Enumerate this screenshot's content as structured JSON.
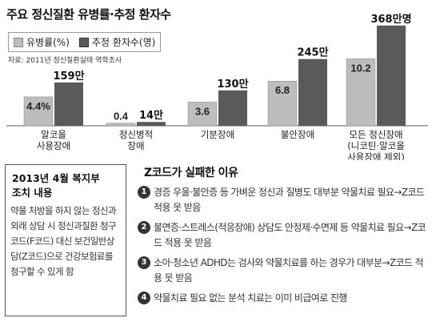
{
  "title": "주요 정신질환 유병률·추정 환자수",
  "legend": {
    "rate": "유병률(%)",
    "patients": "추정 환자수(명)"
  },
  "source": "자료: 2011년 정신질환실태 역학조사",
  "chart_data": {
    "type": "bar",
    "categories": [
      "알코올\n사용장애",
      "정신병적\n장애",
      "기분장애",
      "불안장애",
      "모든 정신장애\n(니코틴·알코올\n사용장애 제외)"
    ],
    "series": [
      {
        "name": "유병률(%)",
        "values": [
          4.4,
          0.4,
          3.6,
          6.8,
          10.2
        ],
        "labels": [
          "4.4%",
          "0.4",
          "3.6",
          "6.8",
          "10.2"
        ]
      },
      {
        "name": "추정 환자수(명)",
        "values": [
          159,
          14,
          130,
          245,
          368
        ],
        "labels": [
          "159만",
          "14만",
          "130만",
          "245만",
          "368만명"
        ]
      }
    ],
    "colors": {
      "rate": "#bdbdbd",
      "patients": "#5a5a5a"
    }
  },
  "box": {
    "title": "2013년 4월 복지부 조치 내용",
    "body": "약물 처방을 하지 않는 정신과 외래 상담 시 정신과질환 청구 코드(F코드) 대신 보건일반상담(Z코드)으로 건강보험료를 청구할 수 있게 함"
  },
  "reasons": {
    "title": "Z코드가 실패한 이유",
    "items": [
      {
        "num": "1",
        "text": "경증 우울·불안증 등 가벼운 정신과 질병도 대부분 약물치료 필요→Z코드 적용 못 받음"
      },
      {
        "num": "2",
        "text": "불면증·스트레스(적응장애) 상담도 안정제·수면제 등 약물치료 필요→Z코드 적용 못 받음"
      },
      {
        "num": "3",
        "text": "소아·청소년 ADHD는 검사와 약물치료를 하는 경우가 대부분→Z코드 적용 못 받음"
      },
      {
        "num": "4",
        "text": "약물치료 필요 없는 분석 치료는 이미 비급여로 진행"
      }
    ]
  }
}
